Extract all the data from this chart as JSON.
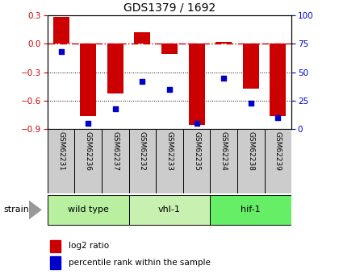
{
  "title": "GDS1379 / 1692",
  "samples": [
    "GSM62231",
    "GSM62236",
    "GSM62237",
    "GSM62232",
    "GSM62233",
    "GSM62235",
    "GSM62234",
    "GSM62238",
    "GSM62239"
  ],
  "log2_ratio": [
    0.28,
    -0.76,
    -0.52,
    0.12,
    -0.11,
    -0.85,
    0.02,
    -0.47,
    -0.76
  ],
  "percentile_rank": [
    68,
    5,
    18,
    42,
    35,
    5,
    45,
    23,
    10
  ],
  "ylim_left": [
    -0.9,
    0.3
  ],
  "ylim_right": [
    0,
    100
  ],
  "yticks_left": [
    0.3,
    0,
    -0.3,
    -0.6,
    -0.9
  ],
  "yticks_right": [
    100,
    75,
    50,
    25,
    0
  ],
  "groups": [
    {
      "label": "wild type",
      "indices": [
        0,
        1,
        2
      ],
      "color": "#b8f0a0"
    },
    {
      "label": "vhl-1",
      "indices": [
        3,
        4,
        5
      ],
      "color": "#c8f0b0"
    },
    {
      "label": "hif-1",
      "indices": [
        6,
        7,
        8
      ],
      "color": "#66ee66"
    }
  ],
  "bar_color": "#cc0000",
  "scatter_color": "#0000cc",
  "bar_width": 0.6,
  "zero_line_color": "#cc0000",
  "grid_color": "#000000",
  "bg_color": "#ffffff",
  "plot_bg": "#ffffff",
  "tick_label_color_left": "#cc0000",
  "tick_label_color_right": "#0000cc",
  "strain_label": "strain",
  "legend_log2": "log2 ratio",
  "legend_pct": "percentile rank within the sample",
  "sample_box_color": "#cccccc",
  "xlim": [
    -0.5,
    8.5
  ]
}
